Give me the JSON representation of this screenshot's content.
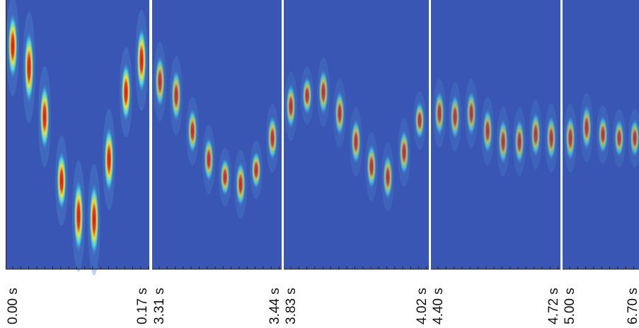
{
  "panels": [
    {
      "start": "0.00 s",
      "end": "0.17 s"
    },
    {
      "start": "3.31 s",
      "end": "3.44 s"
    },
    {
      "start": "3.83 s",
      "end": "4.02 s"
    },
    {
      "start": "4.40 s",
      "end": "4.72 s"
    },
    {
      "start": "5.00 s",
      "end": "6.70 s"
    }
  ]
}
